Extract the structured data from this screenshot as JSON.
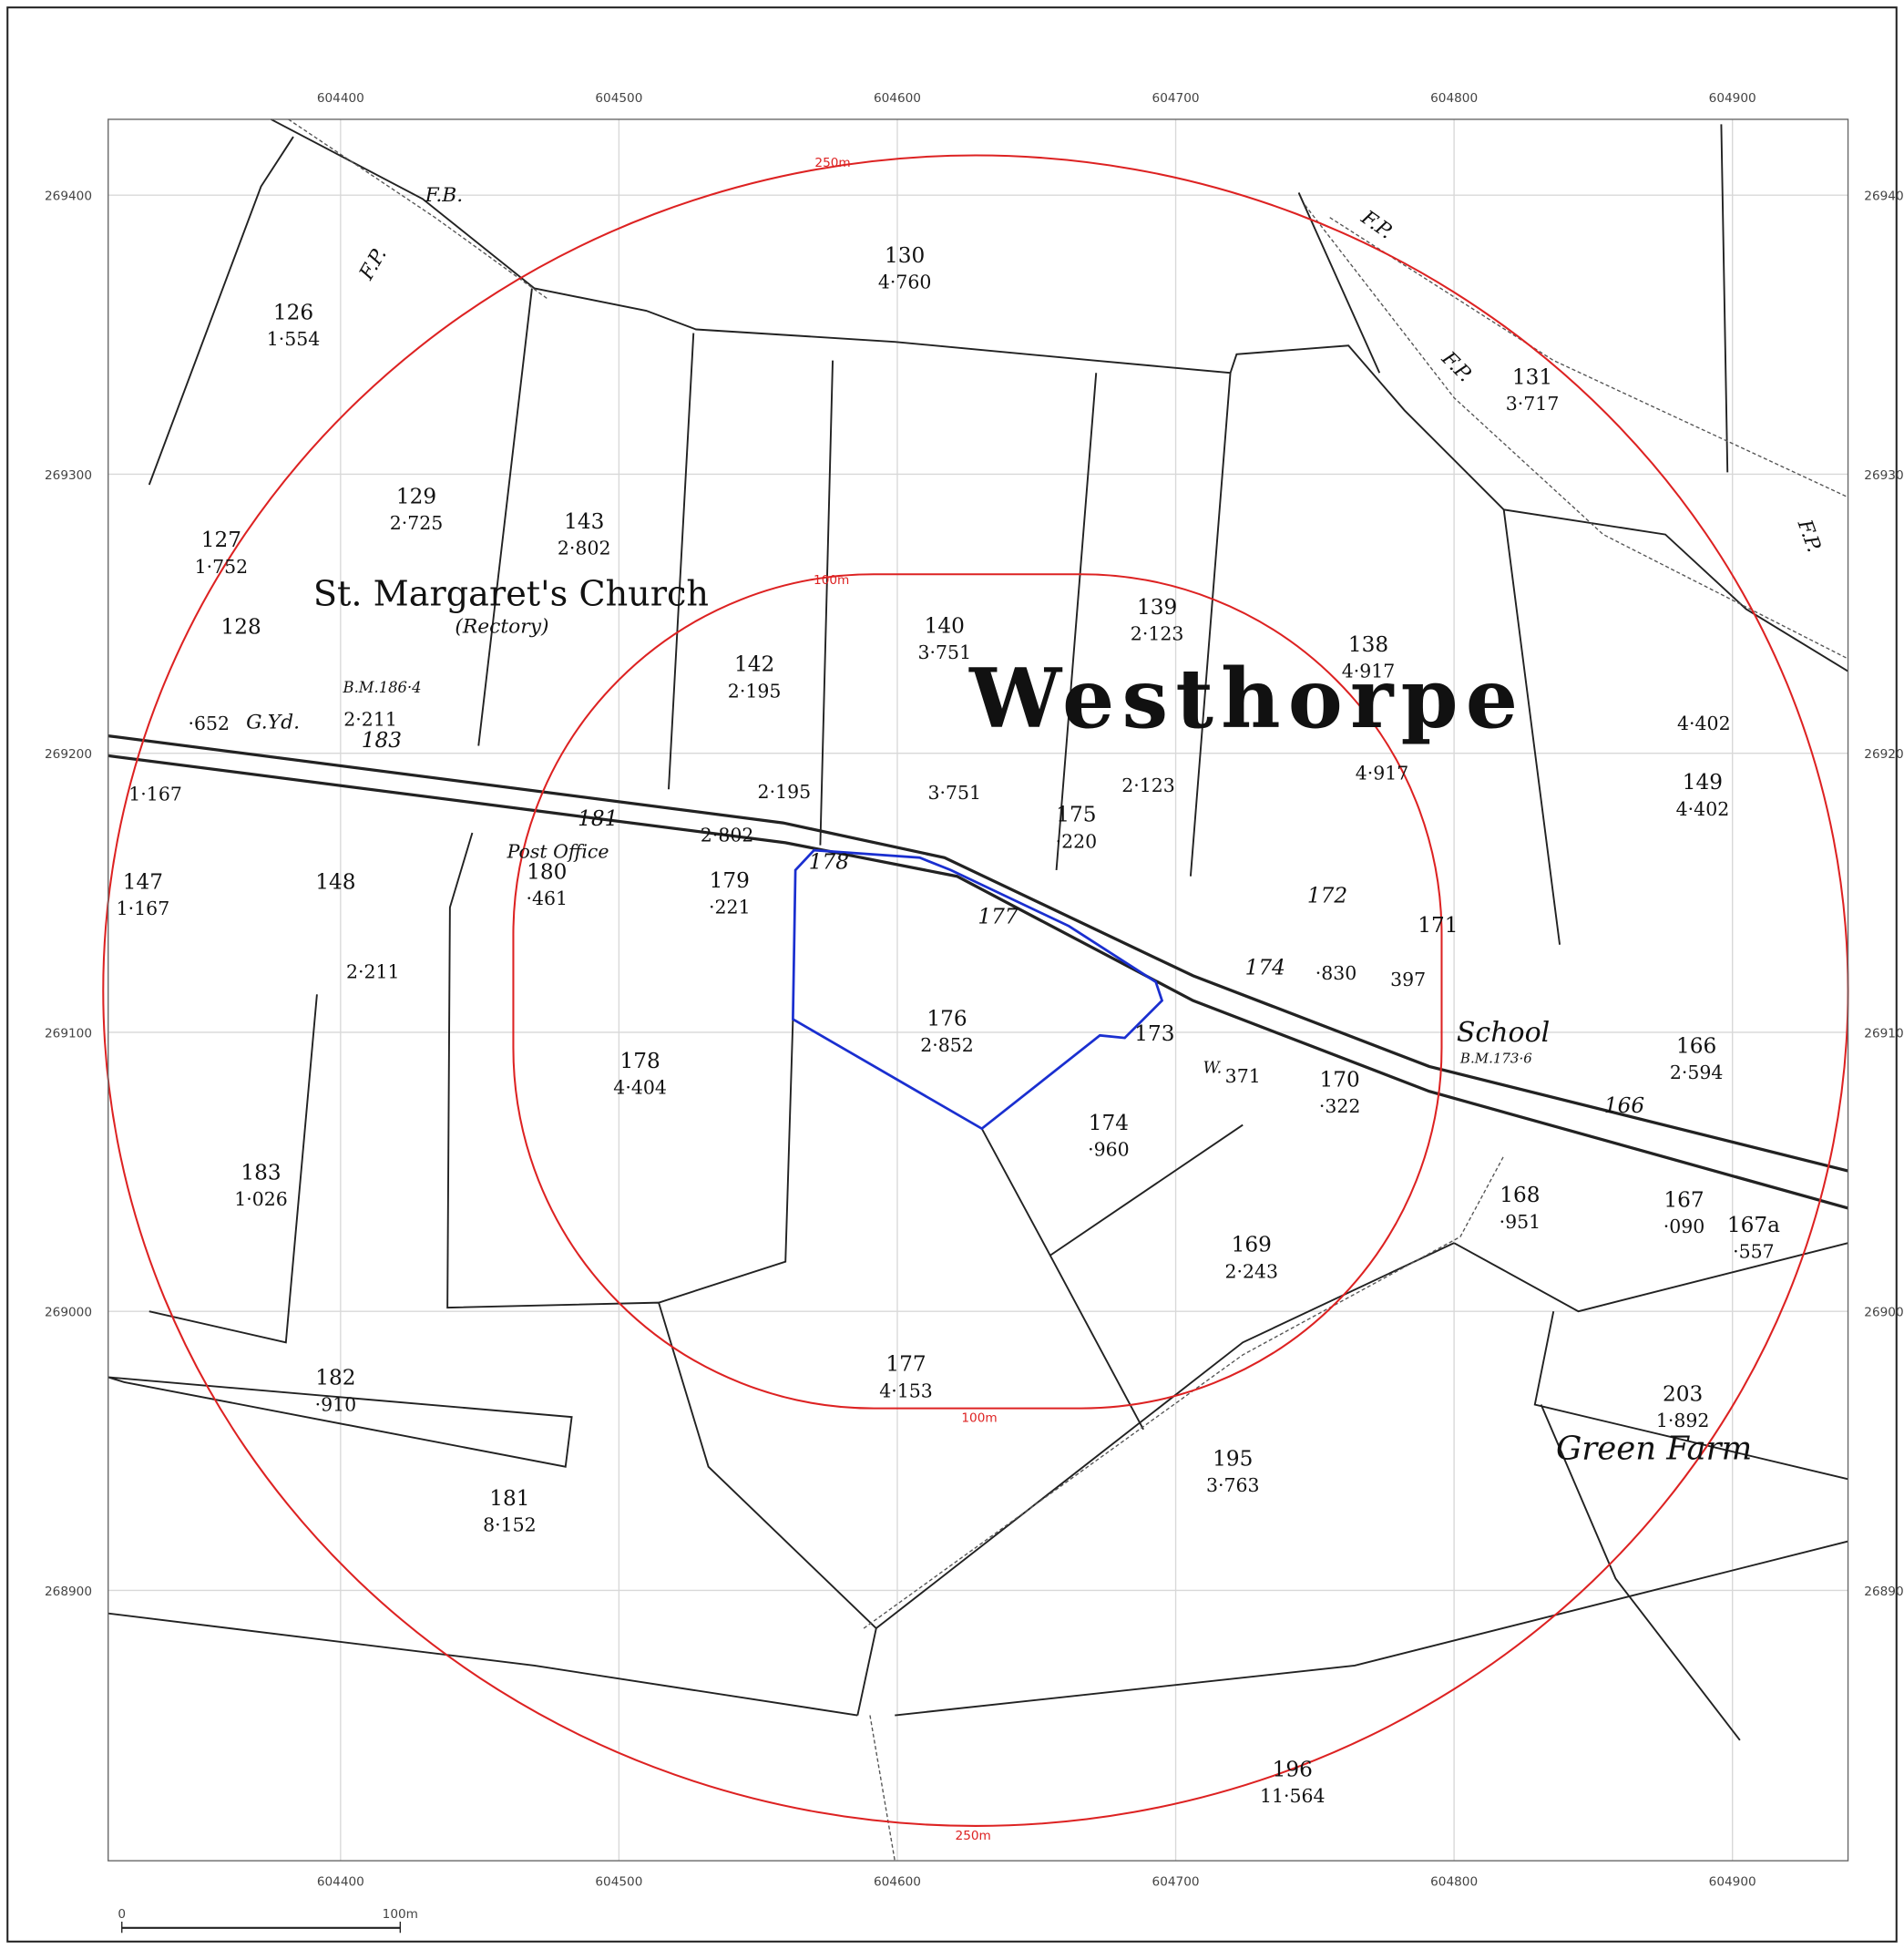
{
  "grid": {
    "eastings": [
      604400,
      604500,
      604600,
      604700,
      604800,
      604900
    ],
    "northings": [
      269400,
      269300,
      269200,
      269100,
      269000,
      268900
    ]
  },
  "parcels": [
    {
      "number": "126",
      "area": "1·554"
    },
    {
      "number": "127",
      "area": "1·752"
    },
    {
      "number": "128"
    },
    {
      "number": "129",
      "area": "2·725"
    },
    {
      "number": "143",
      "area": "2·802"
    },
    {
      "number": "130",
      "area": "4·760"
    },
    {
      "number": "131",
      "area": "3·717"
    },
    {
      "number": "142",
      "area": "2·195"
    },
    {
      "number": "140",
      "area": "3·751"
    },
    {
      "number": "139",
      "area": "2·123"
    },
    {
      "number": "138",
      "area": "4·917"
    },
    {
      "number": "149",
      "area": "4·402"
    },
    {
      "number": "147",
      "area": "1·167"
    },
    {
      "number": "148"
    },
    {
      "number": "180",
      "area": "·461"
    },
    {
      "number": "179",
      "area": "·221"
    },
    {
      "number": "181"
    },
    {
      "number": "175",
      "area": "·220"
    },
    {
      "number": "172"
    },
    {
      "number": "171"
    },
    {
      "number": "174"
    },
    {
      "number": "176",
      "area": "2·852"
    },
    {
      "number": "173"
    },
    {
      "number": "178",
      "area": "4·404"
    },
    {
      "number": "170",
      "area": "·322"
    },
    {
      "number": "166",
      "area": "2·594"
    },
    {
      "number": "174",
      "area": "·960"
    },
    {
      "number": "183",
      "area": "1·026"
    },
    {
      "number": "168",
      "area": "·951"
    },
    {
      "number": "167",
      "area": "·090"
    },
    {
      "number": "167a",
      "area": "·557"
    },
    {
      "number": "169",
      "area": "2·243"
    },
    {
      "number": "177",
      "area": "4·153"
    },
    {
      "number": "182",
      "area": "·910"
    },
    {
      "number": "203",
      "area": "1·892"
    },
    {
      "number": "195",
      "area": "3·763"
    },
    {
      "number": "181",
      "area": "8·152"
    },
    {
      "number": "196",
      "area": "11·564"
    },
    {
      "number": "178"
    },
    {
      "number": "177"
    },
    {
      "number": "183"
    },
    {
      "number": "166"
    }
  ],
  "areas": [
    "4·402",
    "4·917",
    "2·123",
    "3·751",
    "2·195",
    "2·802",
    "1·167",
    "2·211",
    "2·211",
    "·652",
    "·830",
    "397",
    "371"
  ],
  "labels": {
    "church": "St. Margaret's Church",
    "rectory": "(Rectory)",
    "village": "Westhorpe",
    "post_office": "Post Office",
    "school": "School",
    "bm_school": "B.M.173·6",
    "bm_church": "B.M.186·4",
    "farm": "Green Farm",
    "footbridge": "F.B.",
    "footpath": "F.P.",
    "churchyard": "G.Yd.",
    "well": "W."
  },
  "buffers": {
    "outer": "250m",
    "inner": "100m"
  },
  "scale_bar": {
    "start": "0",
    "end": "100m"
  }
}
